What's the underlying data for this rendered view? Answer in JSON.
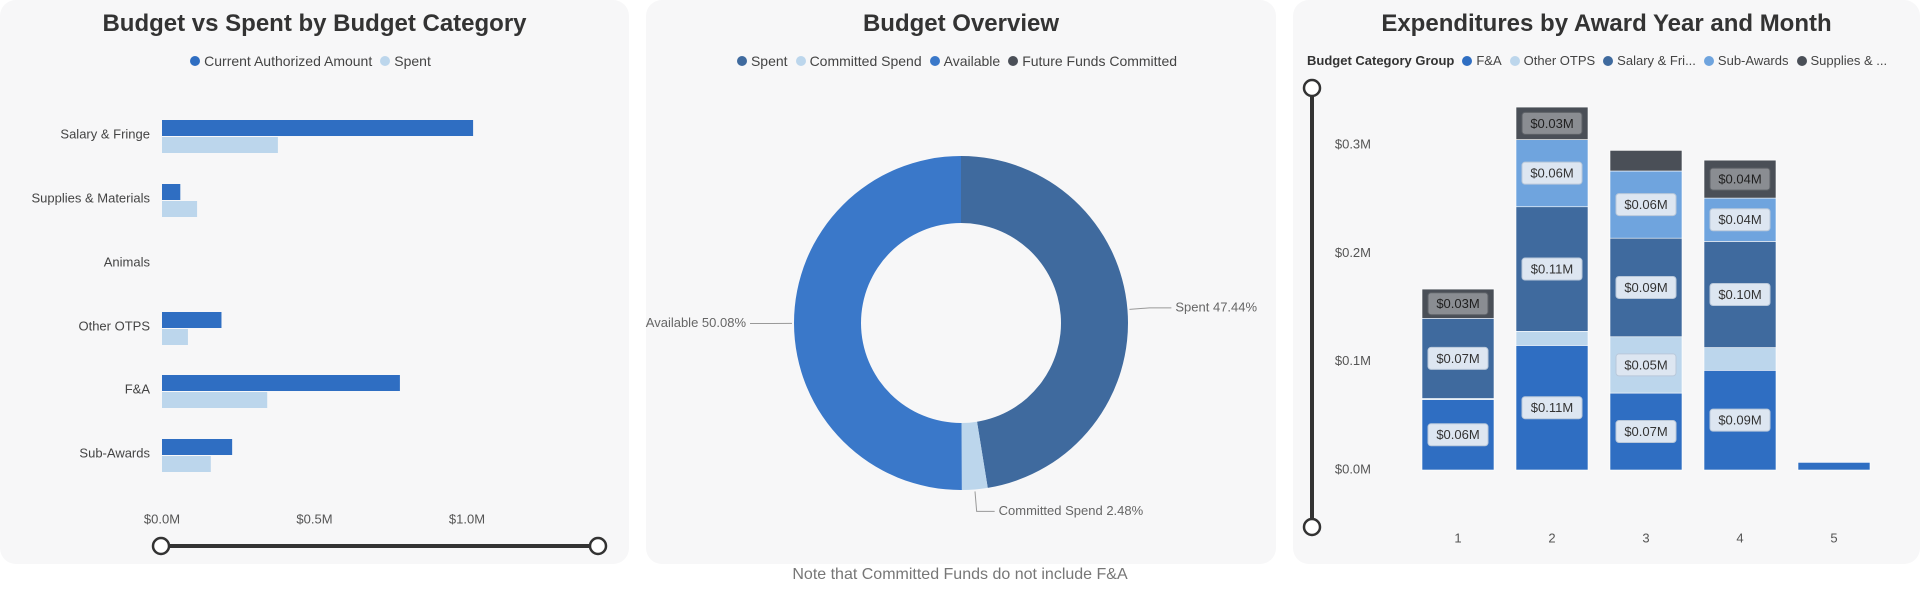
{
  "note": "Note that Committed Funds do not include F&A",
  "colors": {
    "dark_blue": "#2f6ec2",
    "light_blue": "#bcd6ec",
    "slate_blue": "#3f6a9e",
    "mid_blue": "#3a78c9",
    "sky": "#6fa4de",
    "charcoal": "#4a4f57",
    "pale": "#c9dcee"
  },
  "budget_chart": {
    "title": "Budget vs Spent by Budget Category",
    "legend": [
      {
        "label": "Current Authorized Amount",
        "color": "#2f6ec2"
      },
      {
        "label": "Spent",
        "color": "#bcd6ec"
      }
    ],
    "chart_data": {
      "type": "bar",
      "orientation": "horizontal",
      "categories": [
        "Salary & Fringe",
        "Supplies & Materials",
        "Animals",
        "Other OTPS",
        "F&A",
        "Sub-Awards"
      ],
      "series": [
        {
          "name": "Current Authorized Amount",
          "values": [
            1.02,
            0.06,
            0,
            0.195,
            0.78,
            0.23
          ]
        },
        {
          "name": "Spent",
          "values": [
            0.38,
            0.115,
            0,
            0.085,
            0.345,
            0.16
          ]
        }
      ],
      "xlim": [
        0,
        1.2
      ],
      "xticks": [
        0,
        0.5,
        1.0
      ],
      "xtick_labels": [
        "$0.0M",
        "$0.5M",
        "$1.0M"
      ]
    }
  },
  "overview_chart": {
    "title": "Budget Overview",
    "legend": [
      {
        "label": "Spent",
        "color": "#3f6a9e"
      },
      {
        "label": "Committed Spend",
        "color": "#bcd6ec"
      },
      {
        "label": "Available",
        "color": "#3a78c9"
      },
      {
        "label": "Future Funds Committed",
        "color": "#4a4f57"
      }
    ],
    "chart_data": {
      "type": "pie",
      "style": "donut",
      "slices": [
        {
          "label": "Spent",
          "value": 47.44,
          "color": "#3f6a9e",
          "display": "Spent 47.44%"
        },
        {
          "label": "Committed Spend",
          "value": 2.48,
          "color": "#bcd6ec",
          "display": "Committed Spend 2.48%"
        },
        {
          "label": "Available",
          "value": 50.08,
          "color": "#3a78c9",
          "display": "Available 50.08%"
        }
      ]
    }
  },
  "expenditure_chart": {
    "title": "Expenditures by Award Year and Month",
    "legend_title": "Budget Category Group",
    "legend": [
      {
        "label": "F&A",
        "color": "#2f6ec2"
      },
      {
        "label": "Other OTPS",
        "color": "#bcd6ec"
      },
      {
        "label": "Salary & Fri...",
        "color": "#3f6a9e"
      },
      {
        "label": "Sub-Awards",
        "color": "#6fa4de"
      },
      {
        "label": "Supplies & ...",
        "color": "#4a4f57"
      }
    ],
    "chart_data": {
      "type": "bar",
      "stacked": true,
      "categories": [
        "1",
        "2",
        "3",
        "4",
        "5"
      ],
      "series": [
        {
          "name": "F&A",
          "color": "#2f6ec2",
          "values": [
            0.065,
            0.115,
            0.071,
            0.092,
            0.007
          ],
          "labels": [
            "$0.06M",
            "$0.11M",
            "$0.07M",
            "$0.09M",
            ""
          ]
        },
        {
          "name": "Other OTPS",
          "color": "#bcd6ec",
          "values": [
            0.001,
            0.013,
            0.052,
            0.021,
            0
          ],
          "labels": [
            "",
            "",
            "$0.05M",
            "",
            ""
          ]
        },
        {
          "name": "Salary & Fringe",
          "color": "#3f6a9e",
          "values": [
            0.074,
            0.115,
            0.091,
            0.098,
            0
          ],
          "labels": [
            "$0.07M",
            "$0.11M",
            "$0.09M",
            "$0.10M",
            ""
          ]
        },
        {
          "name": "Sub-Awards",
          "color": "#6fa4de",
          "values": [
            0,
            0.062,
            0.062,
            0.04,
            0
          ],
          "labels": [
            "",
            "$0.06M",
            "$0.06M",
            "$0.04M",
            ""
          ]
        },
        {
          "name": "Supplies & Materials",
          "color": "#4a4f57",
          "values": [
            0.027,
            0.03,
            0.019,
            0.035,
            0
          ],
          "labels": [
            "$0.03M",
            "$0.03M",
            "",
            "$0.04M",
            ""
          ]
        }
      ],
      "ylim": [
        0,
        0.35
      ],
      "yticks": [
        0,
        0.1,
        0.2,
        0.3
      ],
      "ytick_labels": [
        "$0.0M",
        "$0.1M",
        "$0.2M",
        "$0.3M"
      ]
    }
  }
}
